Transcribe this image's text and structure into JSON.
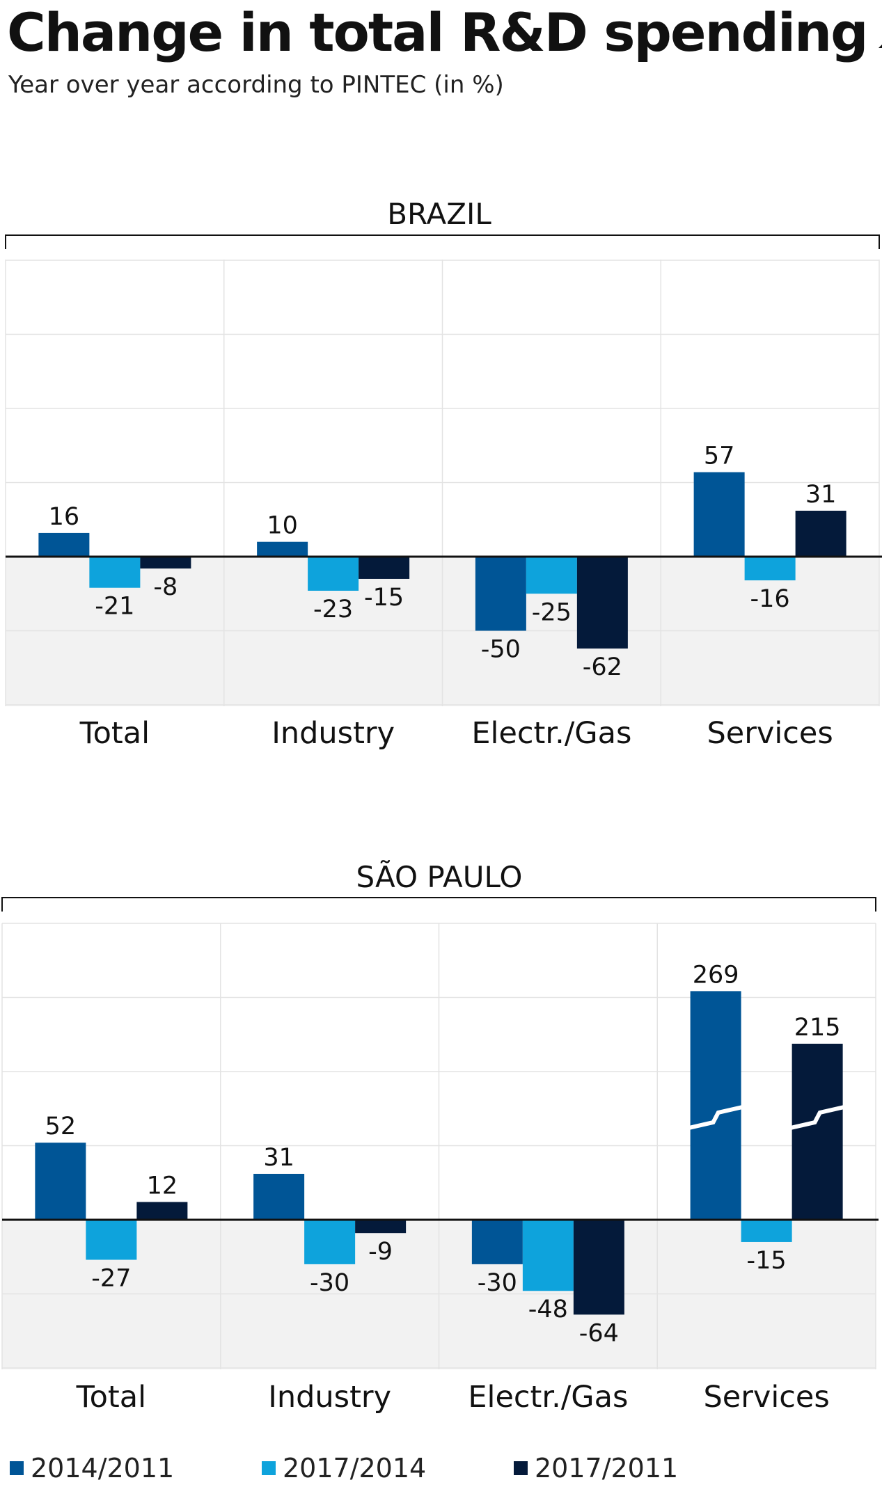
{
  "title": "Change in total R&D spending",
  "subtitle": "Year over year according to PINTEC (in %)",
  "colors": {
    "s2014_2011": "#005596",
    "s2017_2014": "#0ea3dc",
    "s2017_2011": "#041a3a"
  },
  "legend": [
    {
      "label": "2014/2011",
      "color": "#005596"
    },
    {
      "label": "2017/2014",
      "color": "#0ea3dc"
    },
    {
      "label": "2017/2011",
      "color": "#041a3a"
    }
  ],
  "chart_data": [
    {
      "type": "bar",
      "title": "BRAZIL",
      "categories": [
        "Total",
        "Industry",
        "Electr./Gas",
        "Services"
      ],
      "series": [
        {
          "name": "2014/2011",
          "values": [
            16,
            10,
            -50,
            57
          ]
        },
        {
          "name": "2017/2014",
          "values": [
            -21,
            -23,
            -25,
            -16
          ]
        },
        {
          "name": "2017/2011",
          "values": [
            -8,
            -15,
            -62,
            31
          ]
        }
      ],
      "ylim": [
        -100,
        200
      ],
      "grid": true
    },
    {
      "type": "bar",
      "title": "SÃO PAULO",
      "categories": [
        "Total",
        "Industry",
        "Electr./Gas",
        "Services"
      ],
      "series": [
        {
          "name": "2014/2011",
          "values": [
            52,
            31,
            -30,
            269
          ]
        },
        {
          "name": "2017/2014",
          "values": [
            -27,
            -30,
            -48,
            -15
          ]
        },
        {
          "name": "2017/2011",
          "values": [
            12,
            -9,
            -64,
            215
          ]
        }
      ],
      "ylim": [
        -100,
        200
      ],
      "axis_break": true,
      "grid": true
    }
  ]
}
